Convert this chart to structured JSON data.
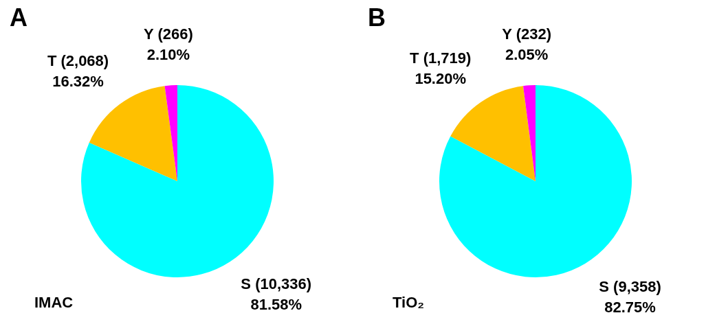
{
  "chart_data": [
    {
      "type": "pie",
      "title": "A",
      "annotations": [
        "IMAC"
      ],
      "categories": [
        "S (10,336)",
        "T (2,068)",
        "Y (266)"
      ],
      "values": [
        81.58,
        16.32,
        2.1
      ],
      "value_labels": [
        "81.58%",
        "16.32%",
        "2.10%"
      ],
      "colors": [
        "#00ffff",
        "#ffc000",
        "#ff00ff"
      ]
    },
    {
      "type": "pie",
      "title": "B",
      "annotations": [
        "TiO₂"
      ],
      "categories": [
        "S (9,358)",
        "T (1,719)",
        "Y (232)"
      ],
      "values": [
        82.75,
        15.2,
        2.05
      ],
      "value_labels": [
        "82.75%",
        "15.20%",
        "2.05%"
      ],
      "colors": [
        "#00ffff",
        "#ffc000",
        "#ff00ff"
      ]
    }
  ]
}
